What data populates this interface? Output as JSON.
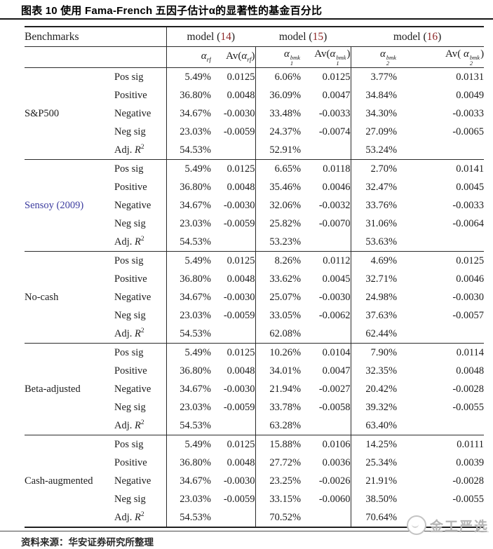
{
  "title": "图表 10 使用 Fama-French 五因子估计α的显著性的基金百分比",
  "table": {
    "benchmarks_header": "Benchmarks",
    "models": [
      {
        "prefix": "model (",
        "number": "14",
        "suffix": ")",
        "alpha": {
          "base": "α",
          "sub": "rf",
          "sup": ""
        },
        "av_pre": "Av(",
        "av_post": ")"
      },
      {
        "prefix": "model (",
        "number": "15",
        "suffix": ")",
        "alpha": {
          "base": "α",
          "sub": "1",
          "sup": "bmk"
        },
        "av_pre": "Av(",
        "av_post": ")"
      },
      {
        "prefix": "model (",
        "number": "16",
        "suffix": ")",
        "alpha": {
          "base": "α",
          "sub": "2",
          "sup": "bmk"
        },
        "av_pre": "Av( ",
        "av_post": ")"
      }
    ],
    "blocks": [
      {
        "benchmark": "S&P500",
        "link": false,
        "rows": [
          {
            "label": "Pos sig",
            "values": [
              "5.49%",
              "0.0125",
              "6.06%",
              "0.0125",
              "3.77%",
              "0.0131"
            ]
          },
          {
            "label": "Positive",
            "values": [
              "36.80%",
              "0.0048",
              "36.09%",
              "0.0047",
              "34.84%",
              "0.0049"
            ]
          },
          {
            "label": "Negative",
            "values": [
              "34.67%",
              "-0.0030",
              "33.48%",
              "-0.0033",
              "34.30%",
              "-0.0033"
            ]
          },
          {
            "label": "Neg sig",
            "values": [
              "23.03%",
              "-0.0059",
              "24.37%",
              "-0.0074",
              "27.09%",
              "-0.0065"
            ]
          },
          {
            "label": "Adj. ",
            "math": "R",
            "sup": "2",
            "values": [
              "54.53%",
              "",
              "52.91%",
              "",
              "53.24%",
              ""
            ]
          }
        ]
      },
      {
        "benchmark": "Sensoy (2009)",
        "link": true,
        "rows": [
          {
            "label": "Pos sig",
            "values": [
              "5.49%",
              "0.0125",
              "6.65%",
              "0.0118",
              "2.70%",
              "0.0141"
            ]
          },
          {
            "label": "Positive",
            "values": [
              "36.80%",
              "0.0048",
              "35.46%",
              "0.0046",
              "32.47%",
              "0.0045"
            ]
          },
          {
            "label": "Negative",
            "values": [
              "34.67%",
              "-0.0030",
              "32.06%",
              "-0.0032",
              "33.76%",
              "-0.0033"
            ]
          },
          {
            "label": "Neg sig",
            "values": [
              "23.03%",
              "-0.0059",
              "25.82%",
              "-0.0070",
              "31.06%",
              "-0.0064"
            ]
          },
          {
            "label": "Adj. ",
            "math": "R",
            "sup": "2",
            "values": [
              "54.53%",
              "",
              "53.23%",
              "",
              "53.63%",
              ""
            ]
          }
        ]
      },
      {
        "benchmark": "No-cash",
        "link": false,
        "rows": [
          {
            "label": "Pos sig",
            "values": [
              "5.49%",
              "0.0125",
              "8.26%",
              "0.0112",
              "4.69%",
              "0.0125"
            ]
          },
          {
            "label": "Positive",
            "values": [
              "36.80%",
              "0.0048",
              "33.62%",
              "0.0045",
              "32.71%",
              "0.0046"
            ]
          },
          {
            "label": "Negative",
            "values": [
              "34.67%",
              "-0.0030",
              "25.07%",
              "-0.0030",
              "24.98%",
              "-0.0030"
            ]
          },
          {
            "label": "Neg sig",
            "values": [
              "23.03%",
              "-0.0059",
              "33.05%",
              "-0.0062",
              "37.63%",
              "-0.0057"
            ]
          },
          {
            "label": "Adj. ",
            "math": "R",
            "sup": "2",
            "values": [
              "54.53%",
              "",
              "62.08%",
              "",
              "62.44%",
              ""
            ]
          }
        ]
      },
      {
        "benchmark": "Beta-adjusted",
        "link": false,
        "rows": [
          {
            "label": "Pos sig",
            "values": [
              "5.49%",
              "0.0125",
              "10.26%",
              "0.0104",
              "7.90%",
              "0.0114"
            ]
          },
          {
            "label": "Positive",
            "values": [
              "36.80%",
              "0.0048",
              "34.01%",
              "0.0047",
              "32.35%",
              "0.0048"
            ]
          },
          {
            "label": "Negative",
            "values": [
              "34.67%",
              "-0.0030",
              "21.94%",
              "-0.0027",
              "20.42%",
              "-0.0028"
            ]
          },
          {
            "label": "Neg sig",
            "values": [
              "23.03%",
              "-0.0059",
              "33.78%",
              "-0.0058",
              "39.32%",
              "-0.0055"
            ]
          },
          {
            "label": "Adj. ",
            "math": "R",
            "sup": "2",
            "values": [
              "54.53%",
              "",
              "63.28%",
              "",
              "63.40%",
              ""
            ]
          }
        ]
      },
      {
        "benchmark": "Cash-augmented",
        "link": false,
        "rows": [
          {
            "label": "Pos sig",
            "values": [
              "5.49%",
              "0.0125",
              "15.88%",
              "0.0106",
              "14.25%",
              "0.0111"
            ]
          },
          {
            "label": "Positive",
            "values": [
              "36.80%",
              "0.0048",
              "27.72%",
              "0.0036",
              "25.34%",
              "0.0039"
            ]
          },
          {
            "label": "Negative",
            "values": [
              "34.67%",
              "-0.0030",
              "23.25%",
              "-0.0026",
              "21.91%",
              "-0.0028"
            ]
          },
          {
            "label": "Neg sig",
            "values": [
              "23.03%",
              "-0.0059",
              "33.15%",
              "-0.0060",
              "38.50%",
              "-0.0055"
            ]
          },
          {
            "label": "Adj. ",
            "math": "R",
            "sup": "2",
            "values": [
              "54.53%",
              "",
              "70.52%",
              "",
              "70.64%",
              ""
            ]
          }
        ]
      }
    ]
  },
  "footer": {
    "source_label": "资料来源：",
    "source_text": "华安证券研究所整理"
  },
  "watermark": {
    "text": "金工严选",
    "icon": "circle-logo-icon"
  },
  "colors": {
    "model_number_red": "#8b2525",
    "link_blue": "#3c3c9f",
    "border_dark": "#1f1f1f",
    "border_mid": "#2b2b2b",
    "text": "#1c1c1c",
    "watermark_gray": "#b5b5b5"
  }
}
